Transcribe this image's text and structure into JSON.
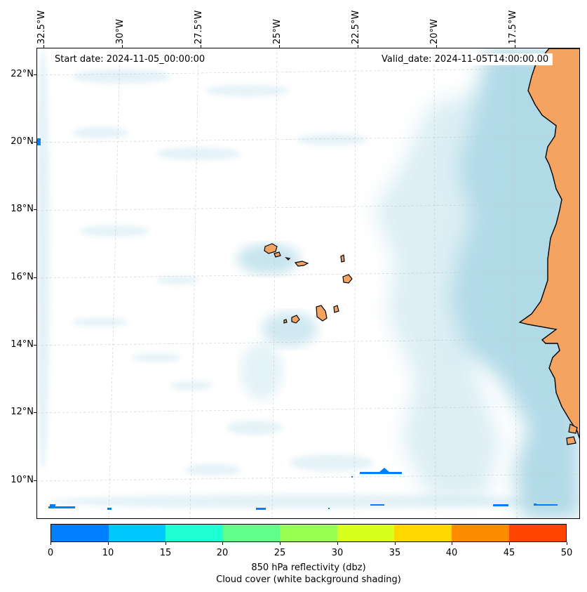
{
  "map": {
    "start_date": "Start date: 2024-11-05_00:00:00",
    "valid_date": "Valid_date: 2024-11-05T14:00:00.00",
    "lon_labels": [
      "32.5°W",
      "30°W",
      "27.5°W",
      "25°W",
      "22.5°W",
      "20°W",
      "17.5°W"
    ],
    "lat_labels": [
      "22°N",
      "20°N",
      "18°N",
      "16°N",
      "14°N",
      "12°N",
      "10°N"
    ],
    "colors": {
      "land": "#f4a460",
      "cloud": "#add8e6",
      "coast": "#000000",
      "grid": "#c8c8c8"
    }
  },
  "colorbar": {
    "ticks": [
      "0",
      "10",
      "15",
      "20",
      "25",
      "30",
      "35",
      "40",
      "45",
      "50"
    ],
    "colors": [
      "#0080ff",
      "#00c8ff",
      "#1effd2",
      "#60ff8a",
      "#9bff52",
      "#d8ff1e",
      "#ffd700",
      "#ff8c00",
      "#ff4500"
    ],
    "label_line1": "850 hPa reflectivity (dbz)",
    "label_line2": "Cloud cover (white background shading)"
  }
}
